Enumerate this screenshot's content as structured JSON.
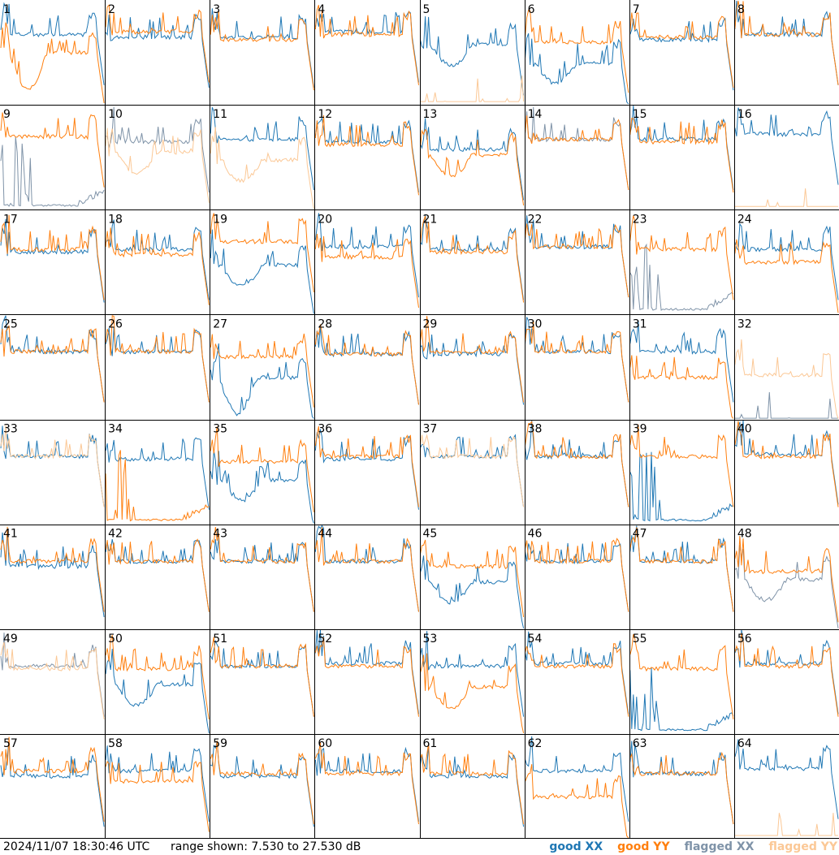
{
  "footer": {
    "timestamp": "2024/11/07 18:30:46 UTC",
    "range_text": "range shown: 7.530 to 27.530 dB"
  },
  "legend": [
    {
      "label": "good XX",
      "color": "#1f77b4"
    },
    {
      "label": "good YY",
      "color": "#ff7f0e"
    },
    {
      "label": "flagged XX",
      "color": "#7f93a8"
    },
    {
      "label": "flagged YY",
      "color": "#fbc896"
    }
  ],
  "chart_data": {
    "type": "line",
    "title": "",
    "xlabel": "",
    "ylabel": "",
    "ylim": [
      7.53,
      27.53
    ],
    "units": "dB",
    "grid_rows": 8,
    "grid_cols": 8,
    "x_points": 64,
    "series_colors": {
      "good_xx": "#1f77b4",
      "good_yy": "#ff7f0e",
      "flagged_xx": "#7f93a8",
      "flagged_yy": "#fbc896"
    },
    "panels": [
      {
        "id": "1",
        "xx": {
          "status": "good",
          "level": 21.0
        },
        "yy": {
          "status": "good",
          "level": 17.5,
          "shape": "deepdip"
        }
      },
      {
        "id": "2",
        "xx": {
          "status": "good",
          "level": 20.5
        },
        "yy": {
          "status": "good",
          "level": 21.5
        }
      },
      {
        "id": "3",
        "xx": {
          "status": "good",
          "level": 20.5
        },
        "yy": {
          "status": "good",
          "level": 20.0
        }
      },
      {
        "id": "4",
        "xx": {
          "status": "good",
          "level": 21.5
        },
        "yy": {
          "status": "good",
          "level": 21.0
        }
      },
      {
        "id": "5",
        "xx": {
          "status": "good",
          "level": 19.0,
          "shape": "dip"
        },
        "yy": {
          "status": "flagged",
          "level": 8.0,
          "shape": "flat"
        }
      },
      {
        "id": "6",
        "xx": {
          "status": "good",
          "level": 15.5,
          "shape": "dip"
        },
        "yy": {
          "status": "good",
          "level": 19.5
        }
      },
      {
        "id": "7",
        "xx": {
          "status": "good",
          "level": 20.0
        },
        "yy": {
          "status": "good",
          "level": 20.5
        }
      },
      {
        "id": "8",
        "xx": {
          "status": "good",
          "level": 21.0
        },
        "yy": {
          "status": "good",
          "level": 21.0
        }
      },
      {
        "id": "9",
        "xx": {
          "status": "flagged",
          "level": 8.0,
          "shape": "spikes"
        },
        "yy": {
          "status": "good",
          "level": 21.5
        }
      },
      {
        "id": "10",
        "xx": {
          "status": "flagged",
          "level": 20.5
        },
        "yy": {
          "status": "flagged",
          "level": 18.5,
          "shape": "dip"
        }
      },
      {
        "id": "11",
        "xx": {
          "status": "good",
          "level": 21.0
        },
        "yy": {
          "status": "flagged",
          "level": 17.0,
          "shape": "dip"
        }
      },
      {
        "id": "12",
        "xx": {
          "status": "good",
          "level": 20.5
        },
        "yy": {
          "status": "good",
          "level": 20.0
        }
      },
      {
        "id": "13",
        "xx": {
          "status": "good",
          "level": 19.0
        },
        "yy": {
          "status": "good",
          "level": 18.0,
          "shape": "dip"
        }
      },
      {
        "id": "14",
        "xx": {
          "status": "flagged",
          "level": 21.0
        },
        "yy": {
          "status": "good",
          "level": 21.0
        }
      },
      {
        "id": "15",
        "xx": {
          "status": "good",
          "level": 21.0
        },
        "yy": {
          "status": "good",
          "level": 20.5
        }
      },
      {
        "id": "16",
        "xx": {
          "status": "good",
          "level": 22.0
        },
        "yy": {
          "status": "flagged",
          "level": 8.0,
          "shape": "flat"
        }
      },
      {
        "id": "17",
        "xx": {
          "status": "good",
          "level": 19.5
        },
        "yy": {
          "status": "good",
          "level": 20.0
        }
      },
      {
        "id": "18",
        "xx": {
          "status": "good",
          "level": 20.0
        },
        "yy": {
          "status": "good",
          "level": 19.0
        }
      },
      {
        "id": "19",
        "xx": {
          "status": "good",
          "level": 17.0,
          "shape": "dip"
        },
        "yy": {
          "status": "good",
          "level": 21.5
        }
      },
      {
        "id": "20",
        "xx": {
          "status": "good",
          "level": 20.5
        },
        "yy": {
          "status": "good",
          "level": 18.5
        }
      },
      {
        "id": "21",
        "xx": {
          "status": "good",
          "level": 20.0
        },
        "yy": {
          "status": "good",
          "level": 19.5
        }
      },
      {
        "id": "22",
        "xx": {
          "status": "good",
          "level": 20.5
        },
        "yy": {
          "status": "good",
          "level": 20.5
        }
      },
      {
        "id": "23",
        "xx": {
          "status": "flagged",
          "level": 8.2,
          "shape": "spikes"
        },
        "yy": {
          "status": "good",
          "level": 20.0
        }
      },
      {
        "id": "24",
        "xx": {
          "status": "good",
          "level": 20.0
        },
        "yy": {
          "status": "good",
          "level": 17.5
        }
      },
      {
        "id": "25",
        "xx": {
          "status": "good",
          "level": 20.5
        },
        "yy": {
          "status": "good",
          "level": 20.5
        }
      },
      {
        "id": "26",
        "xx": {
          "status": "good",
          "level": 20.5
        },
        "yy": {
          "status": "good",
          "level": 20.5
        }
      },
      {
        "id": "27",
        "xx": {
          "status": "good",
          "level": 15.5,
          "shape": "deepdip"
        },
        "yy": {
          "status": "good",
          "level": 19.5
        }
      },
      {
        "id": "28",
        "xx": {
          "status": "good",
          "level": 20.0
        },
        "yy": {
          "status": "good",
          "level": 20.0
        }
      },
      {
        "id": "29",
        "xx": {
          "status": "good",
          "level": 20.0
        },
        "yy": {
          "status": "good",
          "level": 20.5
        }
      },
      {
        "id": "30",
        "xx": {
          "status": "good",
          "level": 20.5
        },
        "yy": {
          "status": "good",
          "level": 20.5
        }
      },
      {
        "id": "31",
        "xx": {
          "status": "good",
          "level": 20.5
        },
        "yy": {
          "status": "good",
          "level": 15.5
        }
      },
      {
        "id": "32",
        "xx": {
          "status": "flagged",
          "level": 7.6,
          "shape": "flat"
        },
        "yy": {
          "status": "flagged",
          "level": 16.0
        }
      },
      {
        "id": "33",
        "xx": {
          "status": "good",
          "level": 20.5
        },
        "yy": {
          "status": "flagged",
          "level": 20.5
        }
      },
      {
        "id": "34",
        "xx": {
          "status": "good",
          "level": 20.0
        },
        "yy": {
          "status": "good",
          "level": 8.0,
          "shape": "spikes"
        }
      },
      {
        "id": "35",
        "xx": {
          "status": "good",
          "level": 16.0,
          "shape": "dip"
        },
        "yy": {
          "status": "good",
          "level": 19.5
        }
      },
      {
        "id": "36",
        "xx": {
          "status": "good",
          "level": 20.0
        },
        "yy": {
          "status": "good",
          "level": 20.5
        }
      },
      {
        "id": "37",
        "xx": {
          "status": "good",
          "level": 20.5
        },
        "yy": {
          "status": "flagged",
          "level": 20.5
        }
      },
      {
        "id": "38",
        "xx": {
          "status": "good",
          "level": 20.5
        },
        "yy": {
          "status": "good",
          "level": 20.5
        }
      },
      {
        "id": "39",
        "xx": {
          "status": "good",
          "level": 8.0,
          "shape": "spikes"
        },
        "yy": {
          "status": "good",
          "level": 20.5
        }
      },
      {
        "id": "40",
        "xx": {
          "status": "good",
          "level": 21.0
        },
        "yy": {
          "status": "good",
          "level": 20.5
        }
      },
      {
        "id": "41",
        "xx": {
          "status": "good",
          "level": 19.5
        },
        "yy": {
          "status": "good",
          "level": 20.5
        }
      },
      {
        "id": "42",
        "xx": {
          "status": "good",
          "level": 20.5
        },
        "yy": {
          "status": "good",
          "level": 20.5
        }
      },
      {
        "id": "43",
        "xx": {
          "status": "good",
          "level": 20.5
        },
        "yy": {
          "status": "good",
          "level": 20.5
        }
      },
      {
        "id": "44",
        "xx": {
          "status": "good",
          "level": 20.5
        },
        "yy": {
          "status": "good",
          "level": 20.5
        }
      },
      {
        "id": "45",
        "xx": {
          "status": "good",
          "level": 16.5,
          "shape": "dip"
        },
        "yy": {
          "status": "good",
          "level": 19.5
        }
      },
      {
        "id": "46",
        "xx": {
          "status": "good",
          "level": 20.5
        },
        "yy": {
          "status": "good",
          "level": 20.5
        }
      },
      {
        "id": "47",
        "xx": {
          "status": "good",
          "level": 20.5
        },
        "yy": {
          "status": "good",
          "level": 20.5
        }
      },
      {
        "id": "48",
        "xx": {
          "status": "flagged",
          "level": 17.0,
          "shape": "dip"
        },
        "yy": {
          "status": "good",
          "level": 18.5
        }
      },
      {
        "id": "49",
        "xx": {
          "status": "flagged",
          "level": 20.5
        },
        "yy": {
          "status": "flagged",
          "level": 20.0
        }
      },
      {
        "id": "50",
        "xx": {
          "status": "good",
          "level": 17.0,
          "shape": "dip"
        },
        "yy": {
          "status": "good",
          "level": 20.0
        }
      },
      {
        "id": "51",
        "xx": {
          "status": "good",
          "level": 20.5
        },
        "yy": {
          "status": "good",
          "level": 20.5
        }
      },
      {
        "id": "52",
        "xx": {
          "status": "good",
          "level": 21.0
        },
        "yy": {
          "status": "good",
          "level": 20.5
        }
      },
      {
        "id": "53",
        "xx": {
          "status": "good",
          "level": 20.5
        },
        "yy": {
          "status": "good",
          "level": 16.5,
          "shape": "dip"
        }
      },
      {
        "id": "54",
        "xx": {
          "status": "good",
          "level": 21.0
        },
        "yy": {
          "status": "good",
          "level": 20.5
        }
      },
      {
        "id": "55",
        "xx": {
          "status": "good",
          "level": 8.0,
          "shape": "spikes"
        },
        "yy": {
          "status": "good",
          "level": 20.0
        }
      },
      {
        "id": "56",
        "xx": {
          "status": "good",
          "level": 21.0
        },
        "yy": {
          "status": "good",
          "level": 20.5
        }
      },
      {
        "id": "57",
        "xx": {
          "status": "good",
          "level": 19.5
        },
        "yy": {
          "status": "good",
          "level": 20.5
        }
      },
      {
        "id": "58",
        "xx": {
          "status": "good",
          "level": 20.5
        },
        "yy": {
          "status": "good",
          "level": 18.5
        }
      },
      {
        "id": "59",
        "xx": {
          "status": "good",
          "level": 19.5
        },
        "yy": {
          "status": "good",
          "level": 20.0
        }
      },
      {
        "id": "60",
        "xx": {
          "status": "good",
          "level": 20.5
        },
        "yy": {
          "status": "good",
          "level": 20.0
        }
      },
      {
        "id": "61",
        "xx": {
          "status": "good",
          "level": 19.5
        },
        "yy": {
          "status": "good",
          "level": 20.0
        }
      },
      {
        "id": "62",
        "xx": {
          "status": "good",
          "level": 20.5
        },
        "yy": {
          "status": "good",
          "level": 15.5
        }
      },
      {
        "id": "63",
        "xx": {
          "status": "good",
          "level": 20.0
        },
        "yy": {
          "status": "good",
          "level": 20.0
        }
      },
      {
        "id": "64",
        "xx": {
          "status": "good",
          "level": 21.0
        },
        "yy": {
          "status": "flagged",
          "level": 8.0,
          "shape": "flat"
        }
      }
    ]
  }
}
